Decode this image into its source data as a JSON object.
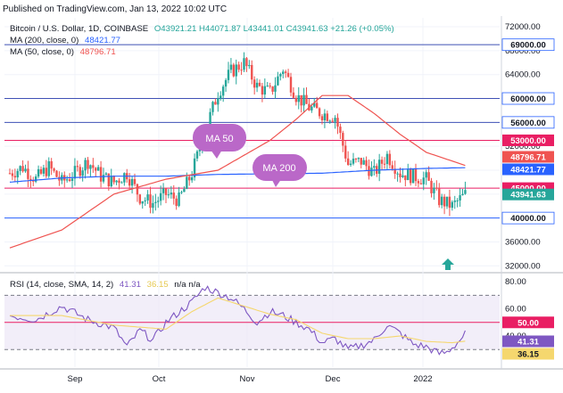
{
  "header": {
    "published": "Published on TradingView.com, Jan 13, 2022 10:02 UTC",
    "symbol": "Bitcoin / U.S. Dollar, 1D, COINBASE",
    "ohlc": "O43921.21 H44071.87 L43441.01 C43941.63 +21.26 (+0.05%)",
    "ma200_label": "MA (200, close, 0)",
    "ma200_value": "48421.77",
    "ma50_label": "MA (50, close, 0)",
    "ma50_value": "48796.71",
    "rsi_label": "RSI (14, close, SMA, 14, 2)",
    "rsi_value": "41.31",
    "rsi_sma_value": "36.15",
    "rsi_na": "n/a n/a"
  },
  "annotations": {
    "ma50_bubble": "MA 50",
    "ma200_bubble": "MA 200"
  },
  "colors": {
    "up": "#26a69a",
    "down": "#ef5350",
    "ma50": "#ef5350",
    "ma200": "#2962ff",
    "rsi": "#7e57c2",
    "rsi_sma": "#f5d76e",
    "bubble": "#ba68c8",
    "support": "#2962ff",
    "resistance": "#e91e63"
  },
  "chart_data": [
    {
      "type": "candlestick",
      "title": "Bitcoin / U.S. Dollar, 1D, COINBASE",
      "x_ticks": [
        "Sep",
        "Oct",
        "Nov",
        "Dec",
        "2022"
      ],
      "y_ticks": [
        "72000.00",
        "68000.00",
        "64000.00",
        "60000.00",
        "56000.00",
        "52000.00",
        "48000.00",
        "44000.00",
        "40000.00",
        "36000.00",
        "32000.00"
      ],
      "ylim": [
        31000,
        73500
      ],
      "horizontal_levels": [
        {
          "label": "69000.00",
          "value": 69000,
          "kind": "resistance"
        },
        {
          "label": "60000.00",
          "value": 60000,
          "kind": "resistance"
        },
        {
          "label": "56000.00",
          "value": 56000,
          "kind": "resistance"
        },
        {
          "label": "53000.00",
          "value": 53000,
          "kind": "resistance"
        },
        {
          "label": "45000.00",
          "value": 45000,
          "kind": "resistance"
        },
        {
          "label": "40000.00",
          "value": 40000,
          "kind": "support"
        }
      ],
      "price_labels": [
        {
          "label": "48796.71",
          "value": 48796.71,
          "kind": "ma50"
        },
        {
          "label": "48421.77",
          "value": 48421.77,
          "kind": "ma200"
        },
        {
          "label": "43941.63",
          "value": 43941.63,
          "kind": "last"
        }
      ],
      "series": [
        {
          "name": "MA (200, close, 0)",
          "x": [
            0,
            20,
            40,
            60,
            80,
            100,
            120,
            140,
            160,
            175
          ],
          "values": [
            46000,
            46700,
            47000,
            47000,
            47300,
            47400,
            47500,
            48000,
            48300,
            48422
          ]
        },
        {
          "name": "MA (50, close, 0)",
          "x": [
            0,
            20,
            40,
            60,
            80,
            100,
            110,
            120,
            130,
            140,
            150,
            160,
            175
          ],
          "values": [
            35000,
            38000,
            44000,
            46500,
            48000,
            53000,
            56500,
            60500,
            60500,
            57500,
            54000,
            51000,
            48797
          ]
        }
      ],
      "close_anchors": {
        "x": [
          0,
          5,
          10,
          15,
          20,
          25,
          30,
          35,
          40,
          45,
          50,
          55,
          60,
          65,
          70,
          75,
          80,
          85,
          90,
          95,
          100,
          105,
          110,
          115,
          120,
          125,
          130,
          135,
          140,
          145,
          150,
          155,
          160,
          165,
          170,
          175
        ],
        "values": [
          47500,
          48500,
          46500,
          48500,
          46000,
          47500,
          49500,
          47000,
          46000,
          47500,
          43500,
          42500,
          44000,
          43000,
          47500,
          54500,
          61000,
          64500,
          66000,
          62000,
          61000,
          65000,
          60500,
          58500,
          57500,
          57000,
          49000,
          49500,
          47500,
          50500,
          47500,
          47000,
          46500,
          43000,
          42000,
          43942
        ]
      }
    },
    {
      "type": "line",
      "title": "RSI (14, close, SMA, 14, 2)",
      "y_ticks": [
        "80.00",
        "60.00",
        "40.00"
      ],
      "ylim": [
        17,
        84
      ],
      "levels": [
        {
          "label": "70",
          "value": 70
        },
        {
          "label": "50.00",
          "value": 50
        },
        {
          "label": "30",
          "value": 30
        }
      ],
      "price_labels": [
        {
          "label": "41.31",
          "value": 41.31,
          "kind": "rsi"
        },
        {
          "label": "36.15",
          "value": 36.15,
          "kind": "rsi_sma"
        }
      ],
      "series": [
        {
          "name": "RSI",
          "x": [
            0,
            10,
            20,
            30,
            40,
            45,
            50,
            55,
            60,
            70,
            75,
            80,
            85,
            90,
            95,
            100,
            105,
            110,
            115,
            120,
            125,
            130,
            135,
            140,
            145,
            150,
            155,
            160,
            165,
            168,
            172,
            175
          ],
          "values": [
            55,
            52,
            62,
            52,
            46,
            32,
            44,
            37,
            50,
            65,
            76,
            72,
            68,
            60,
            50,
            58,
            55,
            50,
            45,
            35,
            38,
            30,
            33,
            37,
            48,
            42,
            34,
            32,
            27,
            28,
            35,
            41.31
          ]
        },
        {
          "name": "RSI SMA",
          "x": [
            0,
            20,
            40,
            60,
            70,
            80,
            90,
            100,
            110,
            120,
            130,
            140,
            150,
            160,
            170,
            175
          ],
          "values": [
            55,
            55,
            48,
            45,
            58,
            68,
            62,
            56,
            52,
            42,
            38,
            38,
            40,
            36,
            35,
            36.15
          ]
        }
      ]
    }
  ]
}
